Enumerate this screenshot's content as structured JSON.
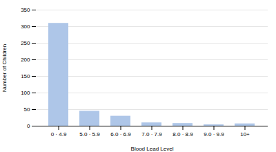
{
  "chart_data": {
    "type": "bar",
    "categories": [
      "0 · 4.9",
      "5.0 · 5.9",
      "6.0 · 6.9",
      "7.0 · 7.9",
      "8.0 · 8.9",
      "9.0 · 9.9",
      "10+"
    ],
    "values": [
      310,
      45,
      30,
      10,
      8,
      4,
      7
    ],
    "color": "#aec6e8",
    "xlabel": "Blood Lead Level",
    "ylabel": "Number of Children",
    "ylim": [
      0,
      350
    ],
    "yticks": [
      0,
      50,
      100,
      150,
      200,
      250,
      300,
      350
    ],
    "grid": true
  }
}
